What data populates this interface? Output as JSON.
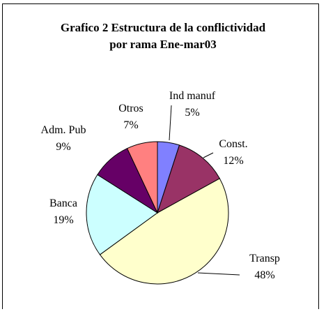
{
  "chart_data": {
    "type": "pie",
    "title_line1": "Grafico 2 Estructura de la conflictividad",
    "title_line2": "por rama Ene-mar03",
    "slices": [
      {
        "label": "Ind manuf",
        "pct_label": "5%",
        "value": 5,
        "color": "#8080ff"
      },
      {
        "label": "Const.",
        "pct_label": "12%",
        "value": 12,
        "color": "#993366"
      },
      {
        "label": "Transp",
        "pct_label": "48%",
        "value": 48,
        "color": "#ffffcc"
      },
      {
        "label": "Banca",
        "pct_label": "19%",
        "value": 19,
        "color": "#ccffff"
      },
      {
        "label": "Adm. Pub",
        "pct_label": "9%",
        "value": 9,
        "color": "#660066"
      },
      {
        "label": "Otros",
        "pct_label": "7%",
        "value": 7,
        "color": "#ff8080"
      }
    ]
  }
}
